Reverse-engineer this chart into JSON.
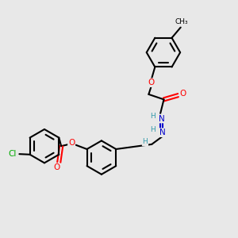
{
  "bg_color": "#e8e8e8",
  "bond_color": "#000000",
  "bond_width": 1.5,
  "atom_colors": {
    "O": "#ff0000",
    "N": "#3399aa",
    "N2": "#0000cc",
    "Cl": "#00aa00",
    "H": "#3399aa",
    "C": "#000000"
  },
  "font_size": 7.5,
  "ring_r": 0.72
}
